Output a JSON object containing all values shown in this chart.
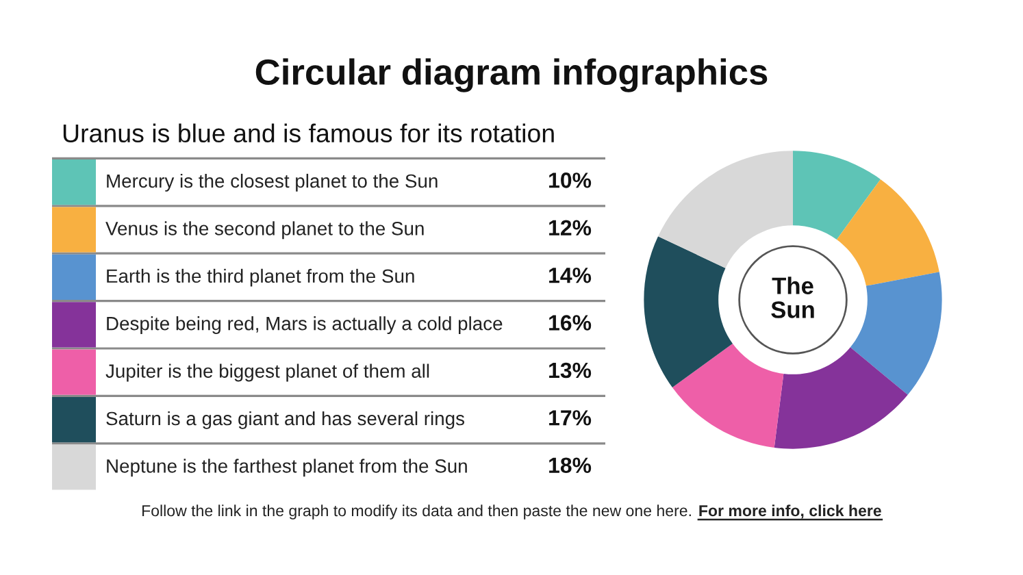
{
  "chart_data": {
    "type": "donut",
    "title": "Circular diagram infographics",
    "subtitle": "Uranus is blue and is famous for its rotation",
    "categories": [
      "Mercury is the closest planet to the Sun",
      "Venus is the second planet to the Sun",
      "Earth is the third planet from the Sun",
      "Despite being red, Mars is actually a cold place",
      "Jupiter is the biggest planet of them all",
      "Saturn is a gas giant and has several rings",
      "Neptune is the farthest planet from the Sun"
    ],
    "values": [
      10,
      12,
      14,
      16,
      13,
      17,
      18
    ],
    "value_labels": [
      "10%",
      "12%",
      "14%",
      "16%",
      "13%",
      "17%",
      "18%"
    ],
    "colors": [
      "#5ec4b6",
      "#f8b041",
      "#5893d0",
      "#85339a",
      "#ee5fa8",
      "#1f4e5c",
      "#d8d8d8"
    ],
    "legend": "left",
    "annotations": [
      "The\nSun",
      "Follow the link in the graph to modify its data and then paste the new one here.",
      "For more info, click here"
    ]
  }
}
